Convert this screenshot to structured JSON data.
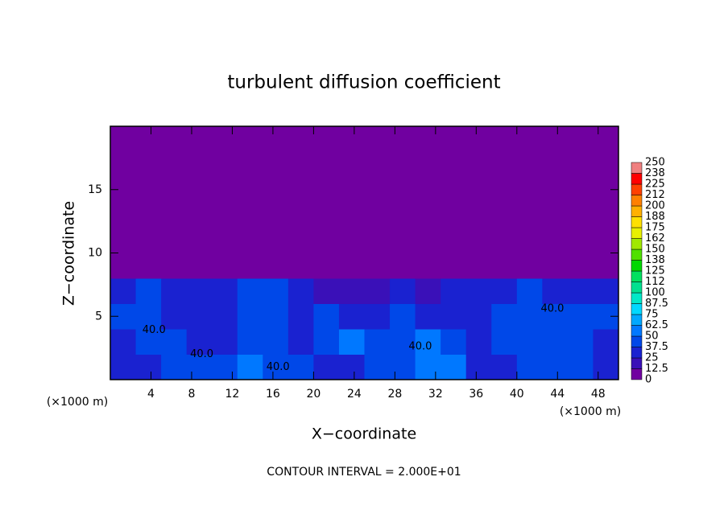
{
  "chart_data": {
    "type": "contour",
    "title": "turbulent diffusion coefficient",
    "xlabel": "X−coordinate",
    "ylabel": "Z−coordinate",
    "x_unit": "(×1000 m)",
    "y_unit": "(×1000 m)",
    "footer": "CONTOUR INTERVAL = 2.000E+01",
    "xlim": [
      0,
      50
    ],
    "ylim": [
      0,
      20
    ],
    "xticks": [
      4,
      8,
      12,
      16,
      20,
      24,
      28,
      32,
      36,
      40,
      44,
      48
    ],
    "yticks": [
      5,
      10,
      15
    ],
    "xbins": [
      0,
      2.5,
      5,
      7.5,
      10,
      12.5,
      15,
      17.5,
      20,
      22.5,
      25,
      27.5,
      30,
      32.5,
      35,
      37.5,
      40,
      42.5,
      45,
      47.5,
      50
    ],
    "ybins": [
      0,
      2,
      4,
      6,
      8,
      10,
      12,
      14,
      16,
      18,
      20
    ],
    "z": [
      [
        30,
        35,
        40,
        38,
        45,
        60,
        38,
        40,
        35,
        30,
        45,
        40,
        55,
        50,
        30,
        35,
        45,
        40,
        38,
        35
      ],
      [
        35,
        38,
        40,
        35,
        35,
        40,
        40,
        35,
        45,
        50,
        40,
        45,
        50,
        40,
        35,
        38,
        42,
        45,
        38,
        35
      ],
      [
        40,
        40,
        35,
        30,
        30,
        40,
        40,
        35,
        40,
        30,
        35,
        40,
        30,
        30,
        35,
        40,
        40,
        45,
        38,
        40
      ],
      [
        35,
        40,
        35,
        30,
        30,
        40,
        40,
        30,
        20,
        15,
        20,
        30,
        15,
        25,
        35,
        35,
        40,
        35,
        30,
        35
      ],
      [
        5,
        0,
        0,
        0,
        0,
        5,
        0,
        0,
        0,
        0,
        0,
        0,
        0,
        0,
        0,
        0,
        0,
        0,
        0,
        0
      ],
      [
        0,
        0,
        0,
        0,
        0,
        0,
        0,
        0,
        0,
        0,
        0,
        0,
        0,
        0,
        0,
        0,
        0,
        0,
        0,
        0
      ],
      [
        0,
        0,
        0,
        0,
        0,
        0,
        0,
        0,
        0,
        0,
        0,
        0,
        0,
        0,
        0,
        0,
        0,
        0,
        0,
        0
      ],
      [
        0,
        0,
        0,
        0,
        0,
        0,
        0,
        0,
        0,
        0,
        0,
        0,
        0,
        0,
        0,
        0,
        0,
        0,
        0,
        0
      ],
      [
        0,
        0,
        0,
        0,
        0,
        0,
        0,
        0,
        0,
        0,
        0,
        0,
        0,
        0,
        0,
        0,
        0,
        0,
        0,
        0
      ],
      [
        0,
        0,
        0,
        0,
        0,
        0,
        0,
        0,
        0,
        0,
        0,
        0,
        0,
        0,
        0,
        0,
        0,
        0,
        0,
        0
      ]
    ],
    "levels": [
      0,
      12.5,
      25,
      37.5,
      50,
      62.5,
      75,
      87.5,
      100,
      112.5,
      125,
      137.5,
      150,
      162.5,
      175,
      187.5,
      200,
      212.5,
      225,
      237.5,
      250
    ],
    "level_labels": [
      "0",
      "12.5",
      "25",
      "37.5",
      "50",
      "62.5",
      "75",
      "87.5",
      "100",
      "112",
      "125",
      "138",
      "150",
      "162",
      "175",
      "188",
      "200",
      "212",
      "225",
      "238",
      "250"
    ],
    "colors": [
      "#7000a0",
      "#3a10b8",
      "#1a22d0",
      "#0048e8",
      "#0078ff",
      "#00a8ff",
      "#00d8ff",
      "#00e8c8",
      "#00e090",
      "#00e060",
      "#00d800",
      "#50e000",
      "#a0e800",
      "#e8f000",
      "#ffe000",
      "#ffb000",
      "#ff8000",
      "#ff4000",
      "#ff0000",
      "#f08080"
    ],
    "contour_labels": {
      "values": [
        40,
        40,
        40,
        40,
        40
      ],
      "value_labels": [
        "40.0",
        "40.0",
        "40.0",
        "40.0",
        "40.0"
      ],
      "x": [
        4.3,
        9,
        16.5,
        30.5,
        43.5
      ],
      "y": [
        3.9,
        2.0,
        1.0,
        2.6,
        5.6
      ]
    }
  }
}
